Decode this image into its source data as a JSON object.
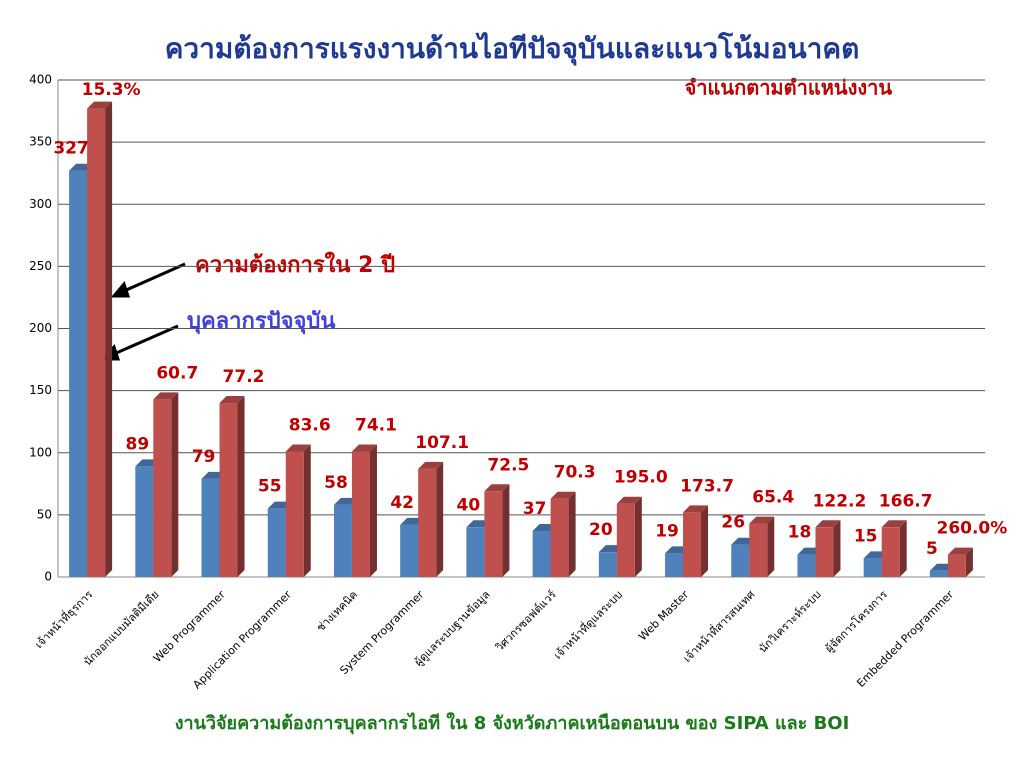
{
  "chart_data": {
    "type": "bar",
    "title": "ความต้องการแรงงานด้านไอทีปัจจุบันและแนวโน้มอนาคต",
    "subtitle": "จำแนกตามตำแหน่งงาน",
    "footer": "งานวิจัยความต้องการบุคลากรไอที ใน 8 จังหวัดภาคเหนือตอนบน ของ SIPA และ BOI",
    "categories": [
      "เจ้าหน้าที่ธุรการ",
      "นักออกแบบมัลติมีเดีย",
      "Web Programmer",
      "Application Programmer",
      "ช่างเทคนิค",
      "System Programmer",
      "ผู้ดูแลระบบฐานข้อมูล",
      "วิศวกรซอฟต์แวร์",
      "เจ้าหน้าที่ดูแลระบบ",
      "Web Master",
      "เจ้าหน้าที่สารสนเทศ",
      "นักวิเคราะห์ระบบ",
      "ผู้จัดการโครงการ",
      "Embedded Programmer"
    ],
    "series": [
      {
        "name": "บุคลากรปัจจุบัน",
        "color": "#4f81bd",
        "values": [
          327,
          89,
          79,
          55,
          58,
          42,
          40,
          37,
          20,
          19,
          26,
          18,
          15,
          5
        ]
      },
      {
        "name": "ความต้องการใน 2 ปี",
        "color": "#c0504d",
        "values": [
          377,
          143,
          140,
          101,
          101,
          87,
          69,
          63,
          59,
          52,
          43,
          40,
          40,
          18
        ]
      }
    ],
    "growth_labels": [
      "15.3%",
      "60.7",
      "77.2",
      "83.6",
      "74.1",
      "107.1",
      "72.5",
      "70.3",
      "195.0",
      "173.7",
      "65.4",
      "122.2",
      "166.7",
      "260.0%"
    ],
    "ylim": [
      0,
      400
    ],
    "yticks": [
      0,
      50,
      100,
      150,
      200,
      250,
      300,
      350,
      400
    ],
    "grid": true
  }
}
